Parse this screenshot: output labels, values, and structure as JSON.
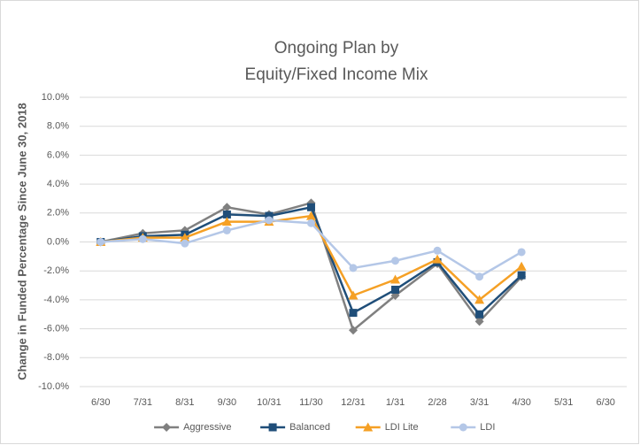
{
  "chart_data": {
    "type": "line",
    "title": [
      "Ongoing Plan by",
      "Equity/Fixed Income Mix"
    ],
    "y_label": "Change in Funded Percentage Since June 30, 2018",
    "categories": [
      "6/30",
      "7/31",
      "8/31",
      "9/30",
      "10/31",
      "11/30",
      "12/31",
      "1/31",
      "2/28",
      "3/31",
      "4/30",
      "5/31",
      "6/30"
    ],
    "series": [
      {
        "name": "Aggressive",
        "color": "#808080",
        "marker": "diamond",
        "values": [
          0,
          0.6,
          0.8,
          2.4,
          1.9,
          2.7,
          -6.1,
          -3.7,
          -1.5,
          -5.5,
          -2.4,
          null,
          null
        ]
      },
      {
        "name": "Balanced",
        "color": "#1f4e79",
        "marker": "square",
        "values": [
          0,
          0.4,
          0.5,
          1.9,
          1.8,
          2.4,
          -4.9,
          -3.3,
          -1.4,
          -5.0,
          -2.3,
          null,
          null
        ]
      },
      {
        "name": "LDI Lite",
        "color": "#f5a025",
        "marker": "triangle",
        "values": [
          0,
          0.3,
          0.3,
          1.4,
          1.4,
          1.8,
          -3.7,
          -2.6,
          -1.2,
          -4.0,
          -1.7,
          null,
          null
        ]
      },
      {
        "name": "LDI",
        "color": "#b4c7e7",
        "marker": "circle",
        "values": [
          0,
          0.2,
          -0.1,
          0.8,
          1.5,
          1.3,
          -1.8,
          -1.3,
          -0.6,
          -2.4,
          -0.7,
          null,
          null
        ]
      }
    ],
    "ylim": [
      -10,
      10
    ],
    "yticks": [
      {
        "value": -10,
        "label": "-10.0%"
      },
      {
        "value": -8,
        "label": "-8.0%"
      },
      {
        "value": -6,
        "label": "-6.0%"
      },
      {
        "value": -4,
        "label": "-4.0%"
      },
      {
        "value": -2,
        "label": "-2.0%"
      },
      {
        "value": 0,
        "label": "0.0%"
      },
      {
        "value": 2,
        "label": "2.0%"
      },
      {
        "value": 4,
        "label": "4.0%"
      },
      {
        "value": 6,
        "label": "6.0%"
      },
      {
        "value": 8,
        "label": "8.0%"
      },
      {
        "value": 10,
        "label": "10.0%"
      }
    ],
    "grid": true,
    "legend": "bottom"
  }
}
